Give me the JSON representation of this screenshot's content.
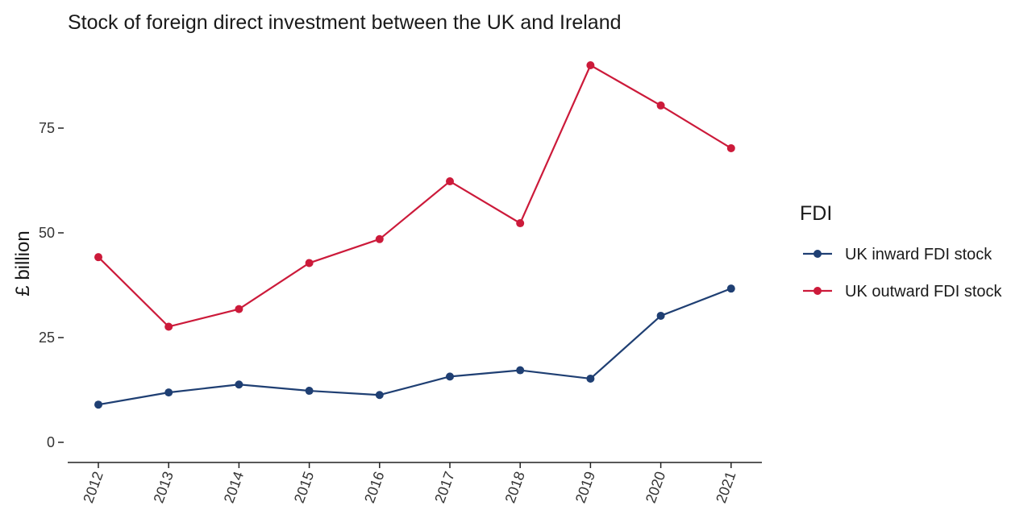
{
  "chart_data": {
    "type": "line",
    "title": "Stock of foreign direct investment between the UK and Ireland",
    "xlabel": "",
    "ylabel": "£ billion",
    "x": [
      "2012",
      "2013",
      "2014",
      "2015",
      "2016",
      "2017",
      "2018",
      "2019",
      "2020",
      "2021"
    ],
    "ylim": [
      -4,
      92
    ],
    "yticks": [
      0,
      25,
      50,
      75
    ],
    "ytick_labels": [
      "0",
      "25",
      "50",
      "75"
    ],
    "grid": false,
    "legend_title": "FDI",
    "legend_position": "right",
    "series": [
      {
        "name": "UK inward FDI stock",
        "color": "#1f3f73",
        "values": [
          9.0,
          11.9,
          13.8,
          12.3,
          11.3,
          15.7,
          17.2,
          15.2,
          30.2,
          36.7
        ]
      },
      {
        "name": "UK outward FDI stock",
        "color": "#cc1a3a",
        "values": [
          44.2,
          27.6,
          31.8,
          42.8,
          48.5,
          62.3,
          52.3,
          90.0,
          80.4,
          70.2
        ]
      }
    ]
  }
}
